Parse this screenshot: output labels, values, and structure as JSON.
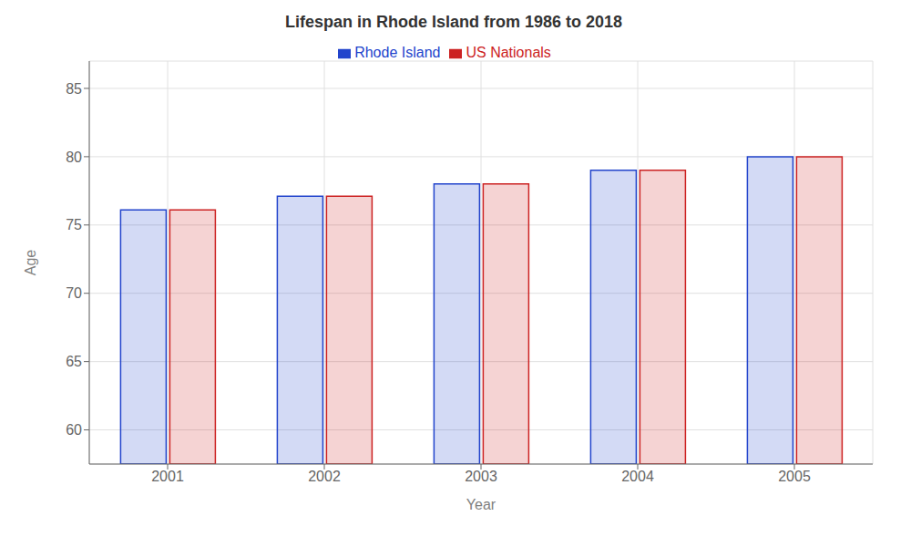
{
  "chart_data": {
    "type": "bar",
    "title": "Lifespan in Rhode Island from 1986 to 2018",
    "x_label": "Year",
    "y_label": "Age",
    "categories": [
      "2001",
      "2002",
      "2003",
      "2004",
      "2005"
    ],
    "series": [
      {
        "name": "Rhode Island",
        "color": "#2244cc",
        "values": [
          76.1,
          77.1,
          78.0,
          79.0,
          80.0
        ]
      },
      {
        "name": "US Nationals",
        "color": "#cc2222",
        "values": [
          76.1,
          77.1,
          78.0,
          79.0,
          80.0
        ]
      }
    ],
    "ylim": [
      57.5,
      87
    ],
    "yticks": [
      60,
      65,
      70,
      75,
      80,
      85
    ],
    "grid": true,
    "legend": "top"
  }
}
